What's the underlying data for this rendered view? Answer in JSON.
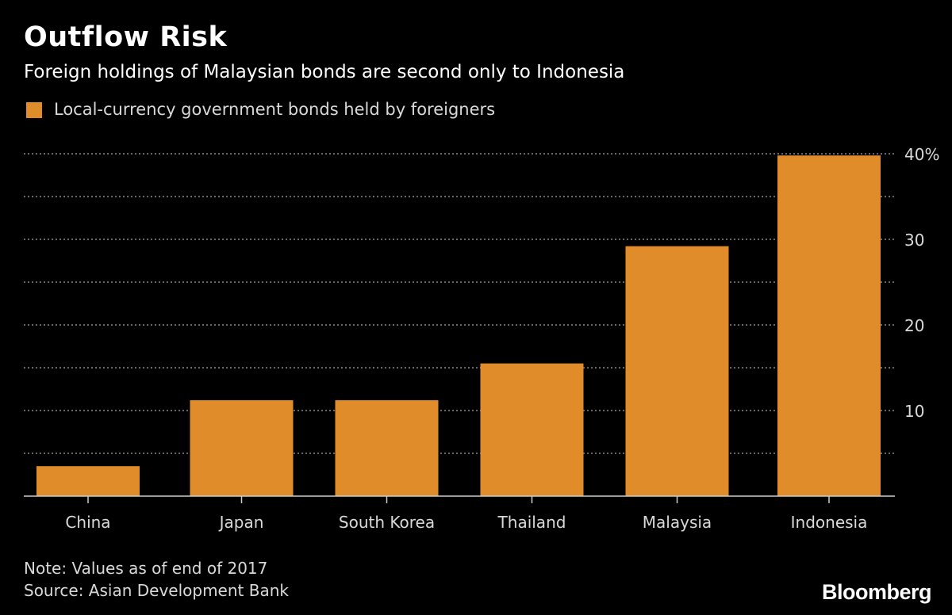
{
  "title": "Outflow Risk",
  "subtitle": "Foreign holdings of Malaysian bonds are second only to Indonesia",
  "note": "Note: Values as of end of 2017",
  "source": "Source: Asian Development Bank",
  "logo": "Bloomberg",
  "colors": {
    "background": "#000000",
    "bar": "#e08c2a",
    "grid": "#8a8a8a",
    "axis": "#cccccc",
    "text": "#d9d9d9"
  },
  "chart_data": {
    "type": "bar",
    "categories": [
      "China",
      "Japan",
      "South Korea",
      "Thailand",
      "Malaysia",
      "Indonesia"
    ],
    "series": [
      {
        "name": "Local-currency government bonds held by foreigners",
        "values": [
          3.5,
          11.2,
          11.2,
          15.5,
          29.2,
          39.8
        ]
      }
    ],
    "ylim": [
      0,
      40
    ],
    "y_ticks": [
      10,
      20,
      30,
      40
    ],
    "y_tick_labels": [
      "10",
      "20",
      "30",
      "40%"
    ],
    "grid": true,
    "legend_position": "top-left"
  }
}
